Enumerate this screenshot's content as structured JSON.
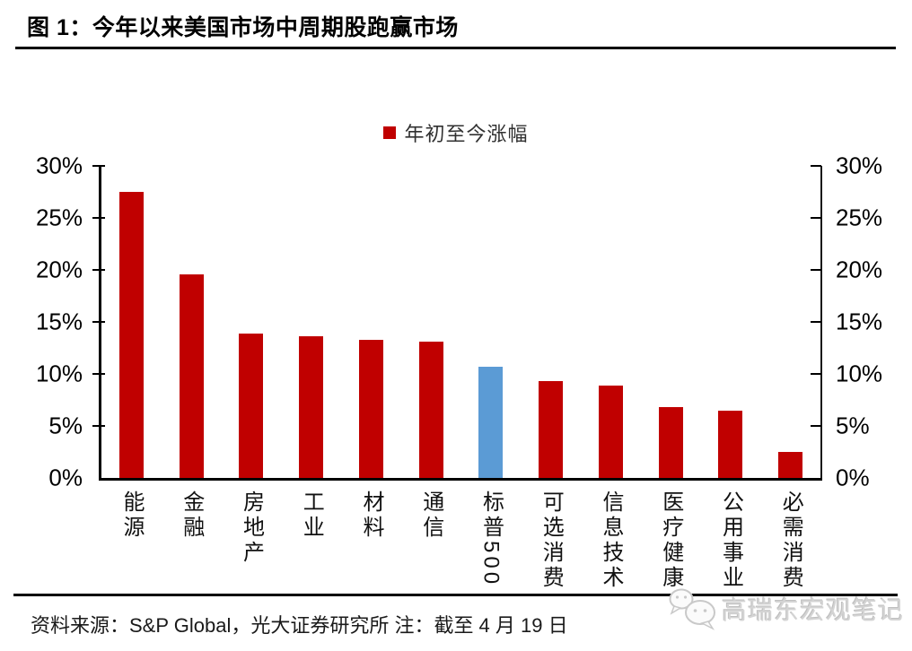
{
  "figure": {
    "title": "图 1：今年以来美国市场中周期股跑赢市场",
    "source_note": "资料来源：S&P Global，光大证券研究所  注：截至 4 月 19 日",
    "watermark_text": "高瑞东宏观笔记",
    "watermark_icon": "wechat-chat-bubbles-icon"
  },
  "chart_data": {
    "type": "bar",
    "title": "图 1：今年以来美国市场中周期股跑赢市场",
    "legend": [
      {
        "label": "年初至今涨幅",
        "color": "#c00000"
      }
    ],
    "legend_position": "top-center",
    "categories": [
      "能源",
      "金融",
      "房地产",
      "工业",
      "材料",
      "通信",
      "标普500",
      "可选消费",
      "信息技术",
      "医疗健康",
      "公用事业",
      "必需消费"
    ],
    "values": [
      27.5,
      19.6,
      13.9,
      13.6,
      13.3,
      13.1,
      10.7,
      9.3,
      8.9,
      6.8,
      6.5,
      2.5
    ],
    "value_unit": "%",
    "bar_colors": [
      "#c00000",
      "#c00000",
      "#c00000",
      "#c00000",
      "#c00000",
      "#c00000",
      "#5b9bd5",
      "#c00000",
      "#c00000",
      "#c00000",
      "#c00000",
      "#c00000"
    ],
    "highlighted_category": "标普500",
    "ylim": [
      0,
      30
    ],
    "yticks": [
      "0%",
      "5%",
      "10%",
      "15%",
      "20%",
      "25%",
      "30%"
    ],
    "y_axis_sides": [
      "left",
      "right"
    ],
    "grid": false,
    "xlabel": "",
    "ylabel": ""
  },
  "colors": {
    "bar_default": "#c00000",
    "bar_highlight": "#5b9bd5",
    "axis": "#000000",
    "watermark": "#d4d4d4"
  }
}
